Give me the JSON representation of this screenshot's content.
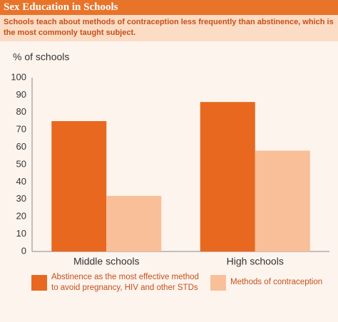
{
  "chart_data": {
    "type": "bar",
    "title": "Sex Education in Schools",
    "subtitle": "Schools teach about methods of contraception less frequently than abstinence, which is the most commonly taught subject.",
    "y_label": "% of schools",
    "categories": [
      "Middle schools",
      "High schools"
    ],
    "series": [
      {
        "name": "Abstinence as the most effective method to avoid pregnancy, HIV and other STDs",
        "color": "#e8681f",
        "values": [
          75,
          86
        ]
      },
      {
        "name": "Methods of contraception",
        "color": "#f9bf98",
        "values": [
          32,
          58
        ]
      }
    ],
    "ylim": [
      0,
      100
    ],
    "yticks": [
      0,
      10,
      20,
      30,
      40,
      50,
      60,
      70,
      80,
      90,
      100
    ],
    "grid": false
  }
}
